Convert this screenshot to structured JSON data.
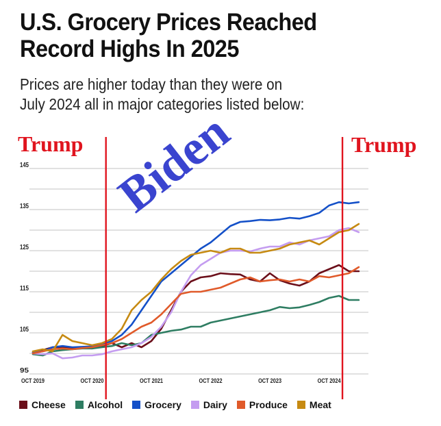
{
  "header": {
    "title_line1": "U.S. Grocery Prices Reached",
    "title_line2": "Record Highs In 2025",
    "subtitle_line1": "Prices are higher today than they were on",
    "subtitle_line2": "July 2024 all in major categories listed below:"
  },
  "annotations": {
    "trump_left": "Trump",
    "trump_right": "Trump",
    "biden": "Biden",
    "marker_color": "#e0141e",
    "biden_color": "#3a44cf"
  },
  "chart_data": {
    "type": "line",
    "title": "U.S. Grocery Prices Reached Record Highs In 2025",
    "xlabel": "",
    "ylabel": "",
    "x_unit": "months since Oct 2019",
    "x": [
      0,
      2,
      4,
      6,
      8,
      10,
      12,
      14,
      16,
      18,
      20,
      22,
      24,
      26,
      28,
      30,
      32,
      34,
      36,
      38,
      40,
      42,
      44,
      46,
      48,
      50,
      52,
      54,
      56,
      58,
      60,
      62,
      64,
      66
    ],
    "xlim": [
      0,
      66
    ],
    "ylim": [
      95,
      145
    ],
    "y_ticks": [
      "95",
      "105",
      "115",
      "125",
      "135",
      "145"
    ],
    "y_gridlines": [
      95,
      100,
      105,
      110,
      115,
      120,
      125,
      130,
      135,
      140,
      145
    ],
    "x_ticks": [
      {
        "month": 0,
        "label": "OCT 2019"
      },
      {
        "month": 12,
        "label": "OCT 2020"
      },
      {
        "month": 24,
        "label": "OCT 2021"
      },
      {
        "month": 36,
        "label": "OCT 2022"
      },
      {
        "month": 48,
        "label": "OCT 2023"
      },
      {
        "month": 60,
        "label": "OCT 2024"
      }
    ],
    "vertical_markers": [
      {
        "month": 14.8,
        "label": "Trump"
      },
      {
        "month": 62.7,
        "label": "Trump"
      }
    ],
    "grid": true,
    "legend_position": "bottom",
    "series": [
      {
        "name": "Cheese",
        "color": "#6b0f1a",
        "values": [
          100.2,
          100.8,
          101.5,
          101.5,
          101.3,
          101.5,
          101.2,
          101.8,
          102.5,
          101.5,
          102.5,
          101.5,
          103,
          106,
          110.5,
          115,
          117.5,
          118.5,
          118.8,
          119.5,
          119.3,
          119.2,
          118,
          117.5,
          119.5,
          117.8,
          117,
          116.5,
          117.5,
          119.5,
          120.5,
          121.5,
          120,
          120
        ]
      },
      {
        "name": "Alcohol",
        "color": "#2e7d62",
        "values": [
          99.8,
          99.5,
          100.5,
          100.8,
          101,
          101.2,
          101.2,
          101.5,
          101.8,
          102.5,
          102,
          102.5,
          104.5,
          105,
          105.5,
          105.8,
          106.5,
          106.5,
          107.5,
          108,
          108.5,
          109,
          109.5,
          110,
          110.5,
          111.3,
          111,
          111.2,
          111.8,
          112.5,
          113.5,
          114,
          113,
          113
        ]
      },
      {
        "name": "Grocery",
        "color": "#1450c8",
        "values": [
          100.3,
          100.5,
          101.5,
          101.8,
          101.5,
          101.6,
          101.7,
          102.3,
          103,
          104.5,
          107,
          110.5,
          114,
          117.5,
          119.5,
          121.5,
          123.5,
          125.5,
          127,
          129,
          131,
          132,
          132.2,
          132.5,
          132.4,
          132.6,
          133,
          132.8,
          133.4,
          134.2,
          136,
          136.8,
          136.5,
          136.8
        ]
      },
      {
        "name": "Dairy",
        "color": "#c49cf0",
        "values": [
          100,
          99.8,
          100,
          98.8,
          99,
          99.5,
          99.5,
          99.8,
          100.5,
          101,
          101.5,
          102.5,
          104,
          106.5,
          110,
          115,
          119,
          121.5,
          123,
          124.5,
          125,
          125,
          124.8,
          125.5,
          126,
          126,
          127,
          126.5,
          127.5,
          128,
          128.5,
          130,
          130.5,
          129.5
        ]
      },
      {
        "name": "Produce",
        "color": "#e05a2a",
        "values": [
          100,
          100.5,
          101,
          101.2,
          101,
          101.3,
          101.5,
          102,
          102.5,
          103.5,
          105,
          106.5,
          107.5,
          109.5,
          112,
          114.5,
          115,
          115,
          115.5,
          116,
          117,
          118,
          118.5,
          117.5,
          117.8,
          118,
          117.5,
          118,
          117.5,
          118.8,
          118.5,
          119,
          119.5,
          121
        ]
      },
      {
        "name": "Meat",
        "color": "#c68a12",
        "values": [
          100.5,
          101,
          100.5,
          104.5,
          103,
          102.5,
          102,
          102.5,
          103.5,
          106,
          110.5,
          113,
          115,
          118,
          120.5,
          122.5,
          124,
          124.5,
          125,
          124.5,
          125.5,
          125.5,
          124.5,
          124.5,
          125,
          125.5,
          126.5,
          127,
          127.5,
          126.5,
          128,
          129.5,
          130,
          131.5
        ]
      }
    ]
  }
}
